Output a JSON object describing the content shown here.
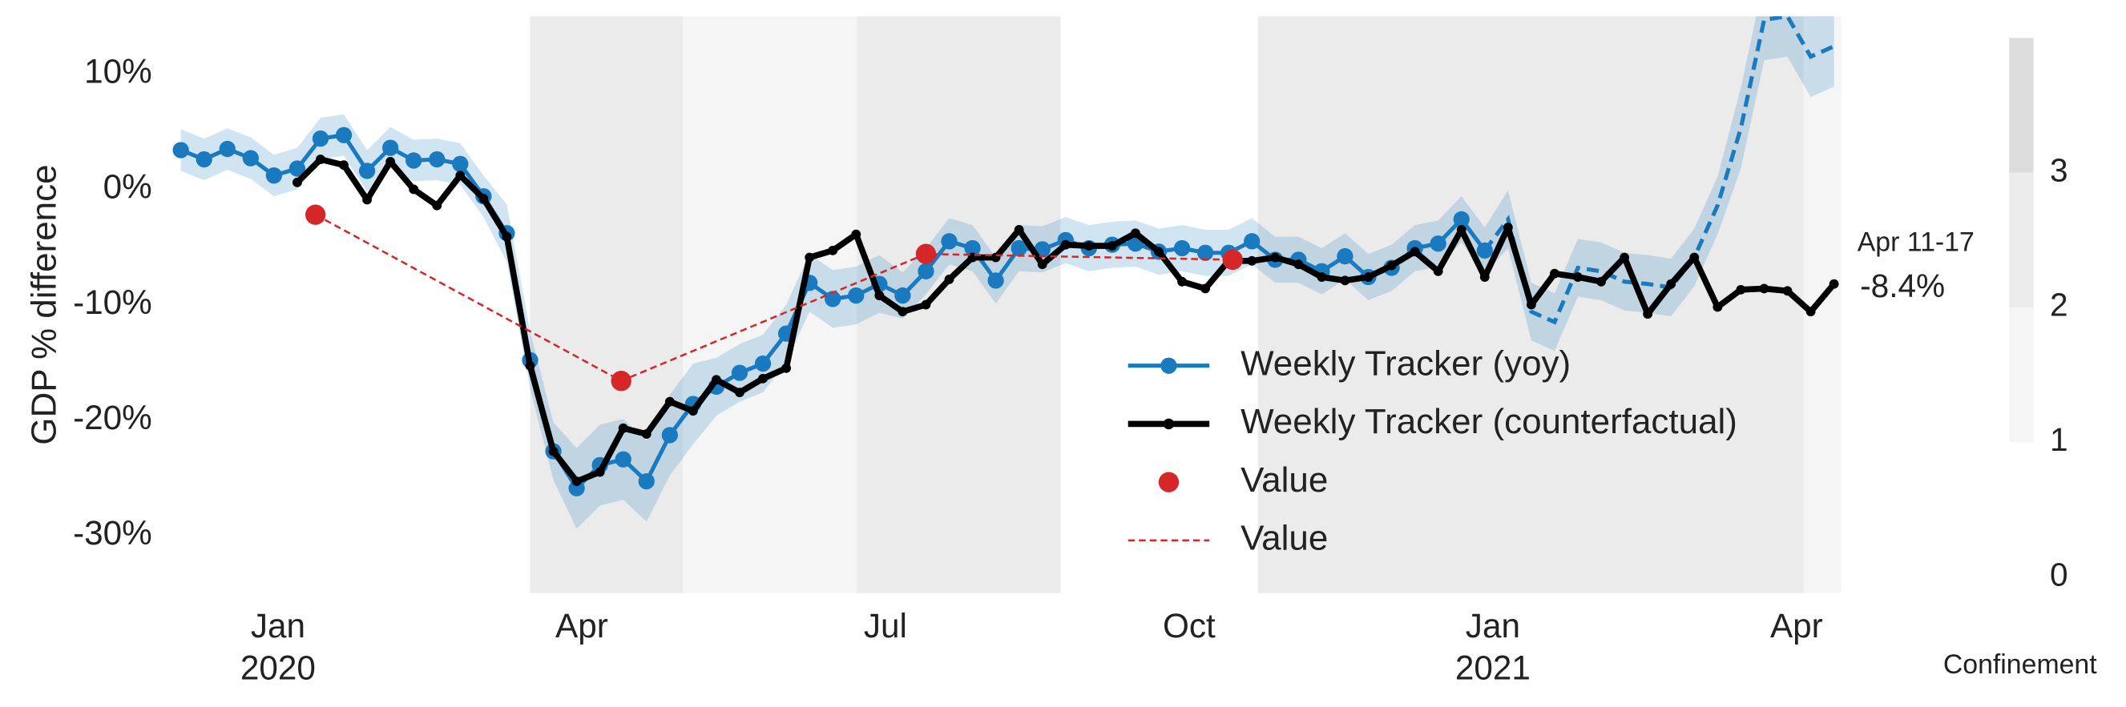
{
  "chart_data": {
    "type": "line",
    "ylabel": "GDP % difference",
    "xlim": [
      -1.07,
      15.44
    ],
    "ylim": [
      -35,
      15
    ],
    "xticks": [
      {
        "value": 0,
        "label": "Jan\n2020"
      },
      {
        "value": 3,
        "label": "Apr"
      },
      {
        "value": 6,
        "label": "Jul"
      },
      {
        "value": 9,
        "label": "Oct"
      },
      {
        "value": 12,
        "label": "Jan\n2021"
      },
      {
        "value": 15,
        "label": "Apr"
      }
    ],
    "yticks": [
      {
        "value": 10,
        "label": "10%"
      },
      {
        "value": 0,
        "label": "0%"
      },
      {
        "value": -10,
        "label": "-10%"
      },
      {
        "value": -20,
        "label": "-20%"
      },
      {
        "value": -30,
        "label": "-30%"
      }
    ],
    "legend": "lower right",
    "series": [
      {
        "name": "Weekly Tracker (yoy)",
        "style": "line-marker",
        "color": "#1a7abf",
        "dashed_from": 11.92,
        "x": [
          -0.96,
          -0.73,
          -0.5,
          -0.27,
          -0.04,
          0.19,
          0.42,
          0.65,
          0.88,
          1.11,
          1.34,
          1.57,
          1.8,
          2.03,
          2.26,
          2.49,
          2.72,
          2.95,
          3.18,
          3.41,
          3.64,
          3.87,
          4.1,
          4.33,
          4.56,
          4.79,
          5.02,
          5.25,
          5.48,
          5.71,
          5.94,
          6.17,
          6.4,
          6.63,
          6.86,
          7.09,
          7.32,
          7.55,
          7.78,
          8.01,
          8.24,
          8.47,
          8.7,
          8.93,
          9.16,
          9.39,
          9.62,
          9.85,
          10.08,
          10.31,
          10.54,
          10.77,
          11.0,
          11.23,
          11.46,
          11.69,
          11.92,
          12.15,
          12.38,
          12.61,
          12.84,
          13.07,
          13.3,
          13.53,
          13.76,
          13.99,
          14.22,
          14.45,
          14.68,
          14.91,
          15.14,
          15.37
        ],
        "values": [
          3.4,
          2.6,
          3.5,
          2.7,
          1.2,
          1.8,
          4.4,
          4.7,
          1.6,
          3.6,
          2.5,
          2.6,
          2.2,
          -0.6,
          -3.8,
          -14.8,
          -22.7,
          -25.9,
          -23.9,
          -23.4,
          -25.3,
          -21.3,
          -18.6,
          -17.1,
          -15.9,
          -15.1,
          -12.5,
          -8.1,
          -9.5,
          -9.2,
          -8.2,
          -9.2,
          -7.1,
          -4.5,
          -5.1,
          -7.9,
          -5.1,
          -5.2,
          -4.4,
          -5.1,
          -4.8,
          -4.7,
          -5.4,
          -5.1,
          -5.5,
          -5.5,
          -4.5,
          -6.1,
          -6.1,
          -7.1,
          -5.8,
          -7.6,
          -6.8,
          -5.1,
          -4.7,
          -2.6,
          -5.3,
          -2.6,
          -10.6,
          -11.5,
          -6.8,
          -7.1,
          -8.0,
          -8.2,
          -8.5,
          -5.9,
          -1.4,
          5.3,
          14.7,
          15,
          11.5,
          12.4
        ],
        "error": [
          1.8,
          1.8,
          1.8,
          1.8,
          1.8,
          1.8,
          1.8,
          1.8,
          1.8,
          1.8,
          1.8,
          1.8,
          1.8,
          1.8,
          2.5,
          2.5,
          2.5,
          3.5,
          3.5,
          3.5,
          3.5,
          3.5,
          3.5,
          2.5,
          2.5,
          2.5,
          2.5,
          2.5,
          2.5,
          2.5,
          2.5,
          2.0,
          2.0,
          2.0,
          2.0,
          2.0,
          2.0,
          2.0,
          2.0,
          2.0,
          2.0,
          2.0,
          2.0,
          2.0,
          2.0,
          2.0,
          2.0,
          2.0,
          2.0,
          2.0,
          2.0,
          2.0,
          2.0,
          2.0,
          2.0,
          2.0,
          2.0,
          2.5,
          2.5,
          2.5,
          2.5,
          2.5,
          2.5,
          2.5,
          2.5,
          2.5,
          2.5,
          3.5,
          3.5,
          3.5,
          3.5,
          3.5
        ]
      },
      {
        "name": "Weekly Tracker (counterfactual)",
        "style": "line-small-marker",
        "color": "#000000",
        "x": [
          -0.96,
          -0.73,
          -0.5,
          -0.27,
          -0.04,
          0.19,
          0.42,
          0.65,
          0.88,
          1.11,
          1.34,
          1.57,
          1.8,
          2.03,
          2.26,
          2.49,
          2.72,
          2.95,
          3.18,
          3.41,
          3.64,
          3.87,
          4.1,
          4.33,
          4.56,
          4.79,
          5.02,
          5.25,
          5.48,
          5.71,
          5.94,
          6.17,
          6.4,
          6.63,
          6.86,
          7.09,
          7.32,
          7.55,
          7.78,
          8.01,
          8.24,
          8.47,
          8.7,
          8.93,
          9.16,
          9.39,
          9.62,
          9.85,
          10.08,
          10.31,
          10.54,
          10.77,
          11.0,
          11.23,
          11.46,
          11.69,
          11.92,
          12.15,
          12.38,
          12.61,
          12.84,
          13.07,
          13.3,
          13.53,
          13.76,
          13.99,
          14.22,
          14.45,
          14.68,
          14.91,
          15.14,
          15.37
        ],
        "values": [
          null,
          null,
          null,
          null,
          null,
          0.6,
          2.6,
          2.1,
          -0.9,
          2.4,
          0,
          -1.4,
          1.2,
          -0.8,
          -4.1,
          -15.3,
          -22.7,
          -25.3,
          -24.5,
          -20.7,
          -21.2,
          -18.4,
          -19.2,
          -16.5,
          -17.6,
          -16.4,
          -15.5,
          -5.9,
          -5.3,
          -3.9,
          -9.2,
          -10.6,
          -10.0,
          -7.8,
          -5.9,
          -5.9,
          -3.5,
          -6.5,
          -4.8,
          -4.9,
          -4.9,
          -3.8,
          -5.4,
          -8.0,
          -8.6,
          -6.2,
          -6.2,
          -5.9,
          -6.5,
          -7.6,
          -7.9,
          -7.6,
          -6.6,
          -5.4,
          -7.1,
          -3.5,
          -7.6,
          -3.3,
          -10.0,
          -7.3,
          -7.6,
          -8.0,
          -5.9,
          -10.8,
          -8.2,
          -5.9,
          -10.2,
          -8.7,
          -8.6,
          -8.8,
          -10.6,
          -8.2
        ]
      },
      {
        "name": "Value",
        "style": "scatter",
        "color": "#d62728",
        "x": [
          0.37,
          3.39,
          6.4,
          9.43
        ],
        "values": [
          -2.2,
          -16.6,
          -5.6,
          -6.1
        ]
      },
      {
        "name": "Value",
        "style": "dashed-line",
        "color": "#d62728",
        "x": [
          0.37,
          3.39,
          6.4,
          9.43
        ],
        "values": [
          -2.2,
          -16.6,
          -5.6,
          -6.1
        ]
      }
    ],
    "annotations": [
      "Apr 11-17",
      "-8.4%"
    ],
    "confinement_periods": [
      {
        "start": 2.49,
        "end": 4.0,
        "level": 2
      },
      {
        "start": 4.0,
        "end": 5.72,
        "level": 1
      },
      {
        "start": 5.72,
        "end": 7.73,
        "level": 2
      },
      {
        "start": 9.68,
        "end": 15.07,
        "level": 2
      },
      {
        "start": 15.07,
        "end": 15.44,
        "level": 1
      }
    ],
    "colorbar": {
      "label": "Confinement",
      "lim": [
        0,
        4
      ],
      "ticks": [
        0,
        1,
        2,
        3
      ],
      "colors": [
        "#ffffff",
        "#f5f5f5",
        "#ebebeb",
        "#dcdcdc"
      ]
    }
  }
}
